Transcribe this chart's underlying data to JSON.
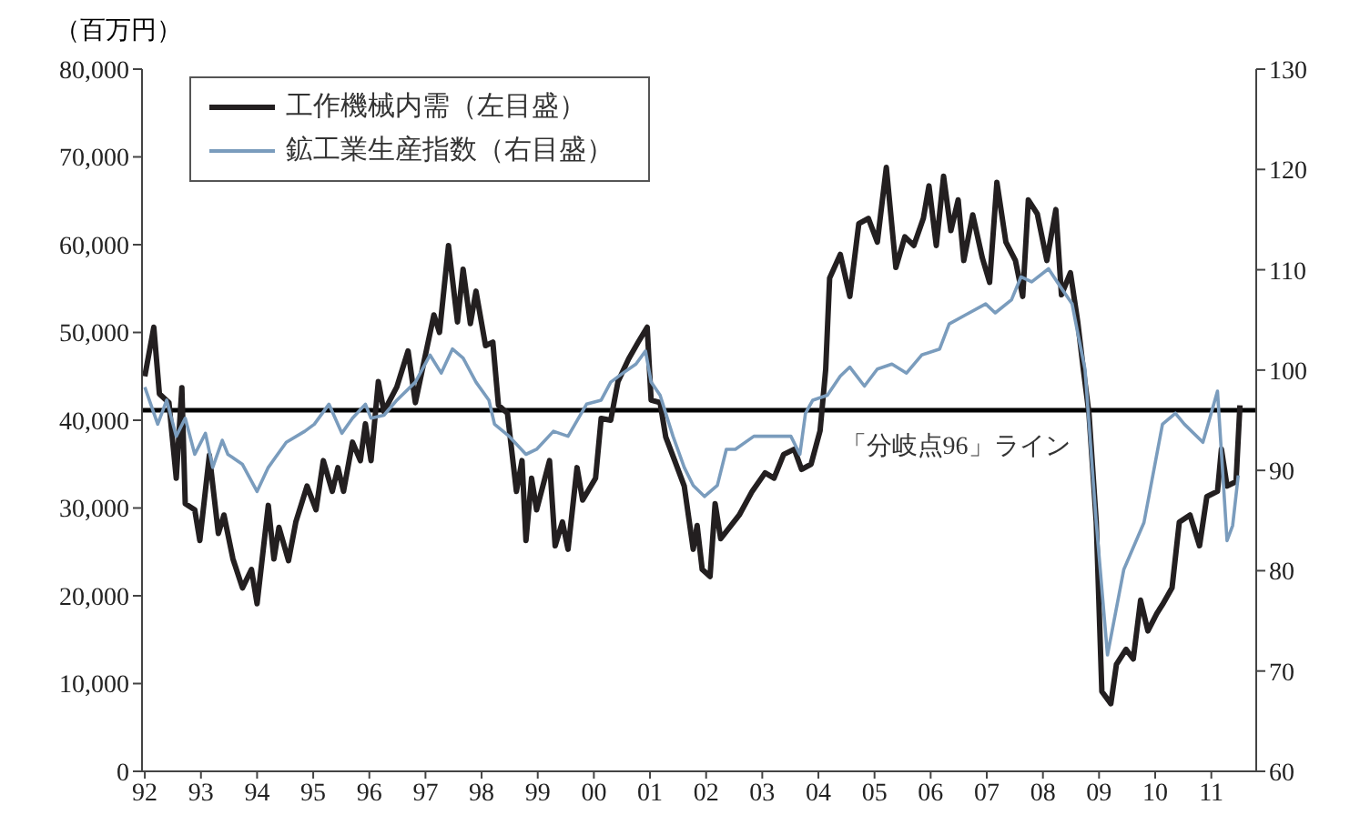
{
  "chart_data": {
    "type": "line",
    "annotations": [
      "（百万円）"
    ],
    "legend": "top left",
    "marker": "none",
    "line_style": "solid",
    "xlim": [
      1991.95,
      2011.8
    ],
    "xticks": [
      {
        "value": 1992,
        "label": "92"
      },
      {
        "value": 1993,
        "label": "93"
      },
      {
        "value": 1994,
        "label": "94"
      },
      {
        "value": 1995,
        "label": "95"
      },
      {
        "value": 1996,
        "label": "96"
      },
      {
        "value": 1997,
        "label": "97"
      },
      {
        "value": 1998,
        "label": "98"
      },
      {
        "value": 1999,
        "label": "99"
      },
      {
        "value": 2000,
        "label": "00"
      },
      {
        "value": 2001,
        "label": "01"
      },
      {
        "value": 2002,
        "label": "02"
      },
      {
        "value": 2003,
        "label": "03"
      },
      {
        "value": 2004,
        "label": "04"
      },
      {
        "value": 2005,
        "label": "05"
      },
      {
        "value": 2006,
        "label": "06"
      },
      {
        "value": 2007,
        "label": "07"
      },
      {
        "value": 2008,
        "label": "08"
      },
      {
        "value": 2009,
        "label": "09"
      },
      {
        "value": 2010,
        "label": "10"
      },
      {
        "value": 2011,
        "label": "11"
      }
    ],
    "ylim": [
      0,
      80000
    ],
    "yticks": [
      0,
      {
        "value": 10000,
        "label": "10,000"
      },
      {
        "value": 20000,
        "label": "20,000"
      },
      {
        "value": 30000,
        "label": "30,000"
      },
      {
        "value": 40000,
        "label": "40,000"
      },
      {
        "value": 50000,
        "label": "50,000"
      },
      {
        "value": 60000,
        "label": "60,000"
      },
      {
        "value": 70000,
        "label": "70,000"
      },
      {
        "value": 80000,
        "label": "80,000"
      }
    ],
    "y2lim": [
      60,
      130
    ],
    "y2ticks": [
      60,
      70,
      80,
      90,
      100,
      110,
      120,
      130
    ],
    "ref_lines": [
      {
        "axis": "y2",
        "value": 96,
        "label": "「分岐点96」ライン",
        "color": "#000000"
      }
    ],
    "series": [
      {
        "name": "工作機械内需（左目盛）",
        "color": "#231f20",
        "x": [
          1992.0,
          1992.16,
          1992.26,
          1992.43,
          1992.56,
          1992.66,
          1992.72,
          1992.89,
          1992.98,
          1993.15,
          1993.31,
          1993.41,
          1993.57,
          1993.74,
          1993.9,
          1994.0,
          1994.2,
          1994.3,
          1994.39,
          1994.56,
          1994.69,
          1994.89,
          1995.05,
          1995.18,
          1995.34,
          1995.44,
          1995.54,
          1995.7,
          1995.84,
          1995.93,
          1996.03,
          1996.16,
          1996.26,
          1996.49,
          1996.69,
          1996.82,
          1997.15,
          1997.25,
          1997.41,
          1997.57,
          1997.67,
          1997.8,
          1997.9,
          1998.07,
          1998.2,
          1998.3,
          1998.46,
          1998.62,
          1998.72,
          1998.79,
          1998.89,
          1998.98,
          1999.21,
          1999.31,
          1999.44,
          1999.54,
          1999.7,
          1999.8,
          2000.03,
          2000.13,
          2000.3,
          2000.43,
          2000.62,
          2000.79,
          2000.95,
          2001.02,
          2001.18,
          2001.28,
          2001.44,
          2001.61,
          2001.77,
          2001.84,
          2001.93,
          2002.07,
          2002.16,
          2002.26,
          2002.59,
          2002.82,
          2003.05,
          2003.21,
          2003.38,
          2003.57,
          2003.7,
          2003.87,
          2004.03,
          2004.13,
          2004.2,
          2004.39,
          2004.56,
          2004.72,
          2004.89,
          2005.05,
          2005.21,
          2005.38,
          2005.54,
          2005.7,
          2005.87,
          2005.97,
          2006.1,
          2006.23,
          2006.36,
          2006.49,
          2006.59,
          2006.75,
          2006.92,
          2007.05,
          2007.18,
          2007.34,
          2007.51,
          2007.64,
          2007.74,
          2007.9,
          2008.07,
          2008.23,
          2008.33,
          2008.49,
          2008.62,
          2008.72,
          2008.82,
          2008.95,
          2009.05,
          2009.21,
          2009.31,
          2009.48,
          2009.61,
          2009.74,
          2009.87,
          2010.03,
          2010.13,
          2010.3,
          2010.43,
          2010.62,
          2010.79,
          2010.92,
          2011.11,
          2011.18,
          2011.28,
          2011.44,
          2011.51
        ],
        "values": [
          45000,
          50600,
          43000,
          42000,
          33400,
          43700,
          30500,
          29800,
          26300,
          36000,
          27100,
          29200,
          24200,
          20900,
          23000,
          19100,
          30300,
          24200,
          27800,
          24000,
          28400,
          32500,
          29800,
          35400,
          31900,
          34600,
          31900,
          37500,
          35400,
          39600,
          35400,
          44400,
          41000,
          43800,
          47900,
          42000,
          52000,
          50000,
          59900,
          51200,
          57200,
          51000,
          54700,
          48500,
          48900,
          41700,
          40800,
          31900,
          35400,
          26300,
          33400,
          29800,
          35400,
          25700,
          28400,
          25300,
          34600,
          30900,
          33400,
          40200,
          40000,
          44400,
          47000,
          48900,
          50600,
          42300,
          42000,
          38100,
          35400,
          32500,
          25300,
          28000,
          23000,
          22200,
          30500,
          26500,
          29200,
          31900,
          34000,
          33400,
          36100,
          36700,
          34400,
          35000,
          38800,
          45800,
          56200,
          58900,
          54100,
          62400,
          63000,
          60300,
          68800,
          57400,
          60900,
          59900,
          63000,
          66700,
          59900,
          67800,
          61600,
          65100,
          58200,
          63400,
          58500,
          55700,
          67100,
          60300,
          58200,
          54100,
          65100,
          63500,
          58200,
          64000,
          54300,
          56800,
          51200,
          45800,
          40800,
          28400,
          9100,
          7700,
          12200,
          13900,
          12800,
          19500,
          16000,
          18000,
          19000,
          20900,
          28400,
          29200,
          25700,
          31300,
          31900,
          36700,
          32500,
          33000,
          41700
        ]
      },
      {
        "name": "鉱工業生産指数（右目盛）",
        "color": "#7a9cbd",
        "axis": "y2",
        "x": [
          1992.0,
          1992.23,
          1992.39,
          1992.56,
          1992.72,
          1992.89,
          1993.08,
          1993.21,
          1993.38,
          1993.48,
          1993.74,
          1994.0,
          1994.2,
          1994.52,
          1994.85,
          1995.02,
          1995.28,
          1995.51,
          1995.7,
          1995.93,
          1996.03,
          1996.26,
          1996.49,
          1996.82,
          1997.08,
          1997.28,
          1997.48,
          1997.67,
          1997.9,
          1998.13,
          1998.23,
          1998.49,
          1998.79,
          1998.98,
          1999.28,
          1999.54,
          1999.87,
          2000.13,
          2000.3,
          2000.52,
          2000.75,
          2000.92,
          2001.02,
          2001.18,
          2001.41,
          2001.61,
          2001.77,
          2001.97,
          2002.2,
          2002.36,
          2002.52,
          2002.85,
          2003.18,
          2003.51,
          2003.67,
          2003.77,
          2003.9,
          2004.16,
          2004.39,
          2004.56,
          2004.82,
          2005.05,
          2005.31,
          2005.57,
          2005.84,
          2006.16,
          2006.33,
          2006.62,
          2006.98,
          2007.15,
          2007.44,
          2007.61,
          2007.8,
          2008.1,
          2008.3,
          2008.52,
          2008.62,
          2008.75,
          2008.95,
          2009.15,
          2009.44,
          2009.8,
          2010.13,
          2010.36,
          2010.52,
          2010.85,
          2011.11,
          2011.28,
          2011.38,
          2011.48
        ],
        "values": [
          98.3,
          94.6,
          97.0,
          93.4,
          95.2,
          91.6,
          93.7,
          90.3,
          93.0,
          91.6,
          90.6,
          87.9,
          90.3,
          92.8,
          93.9,
          94.6,
          96.6,
          93.7,
          95.2,
          96.6,
          95.2,
          95.5,
          97.0,
          98.8,
          101.5,
          99.7,
          102.1,
          101.2,
          98.8,
          97.0,
          94.6,
          93.4,
          91.6,
          92.1,
          93.9,
          93.4,
          96.6,
          97.0,
          98.8,
          99.7,
          100.6,
          101.9,
          98.8,
          97.5,
          93.4,
          90.3,
          88.5,
          87.4,
          88.5,
          92.1,
          92.1,
          93.4,
          93.4,
          93.4,
          91.6,
          95.7,
          97.0,
          97.5,
          99.4,
          100.3,
          98.4,
          100.1,
          100.6,
          99.7,
          101.5,
          102.1,
          104.6,
          105.5,
          106.6,
          105.7,
          107.0,
          109.3,
          108.8,
          110.1,
          108.4,
          106.6,
          103.7,
          100.1,
          84.8,
          71.6,
          80.1,
          84.8,
          94.6,
          95.7,
          94.6,
          92.8,
          97.9,
          83.0,
          84.5,
          89.5
        ]
      }
    ]
  }
}
